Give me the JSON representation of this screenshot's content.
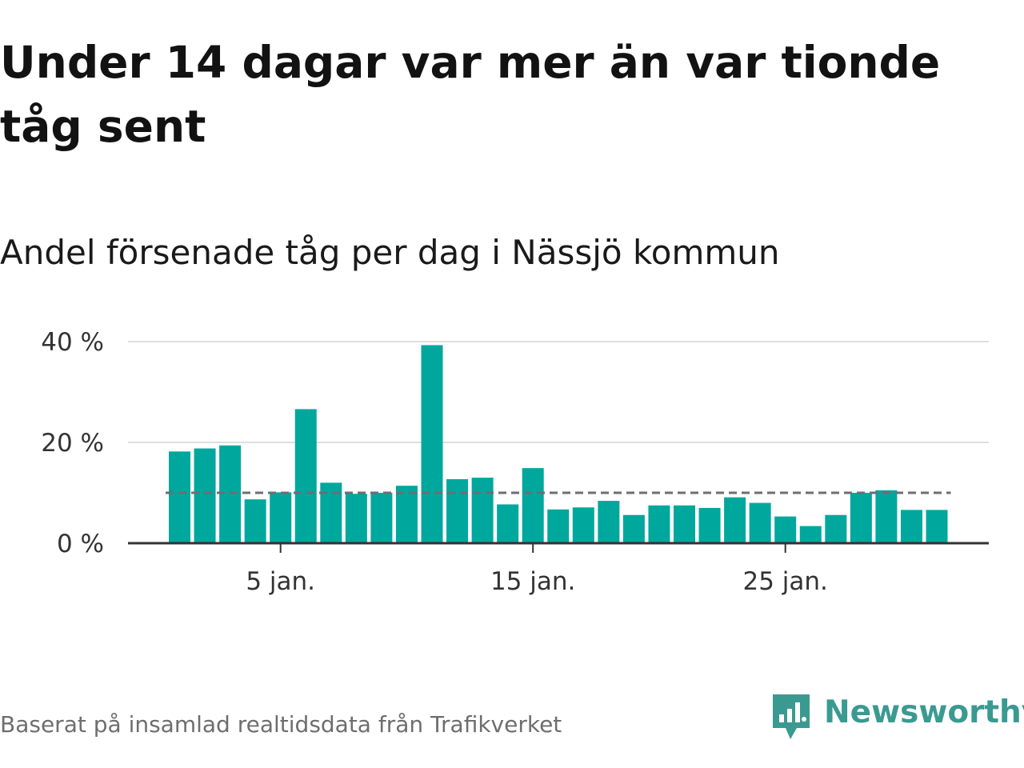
{
  "title": "Under 14 dagar var mer än var tionde tåg sent",
  "subtitle": "Andel försenade tåg per dag i Nässjö kommun",
  "source": "Baserat på insamlad realtidsdata från Trafikverket",
  "brand": {
    "name": "Newsworthy",
    "icon": "newsworthy-logo-icon",
    "color": "#3a9a91"
  },
  "colors": {
    "bar": "#00a79d",
    "reference_line": "#6e6e74",
    "grid": "#dddddd",
    "axis": "#333333"
  },
  "chart_data": {
    "type": "bar",
    "title": "Andel försenade tåg per dag i Nässjö kommun",
    "xlabel": "",
    "ylabel": "",
    "x": [
      1,
      2,
      3,
      4,
      5,
      6,
      7,
      8,
      9,
      10,
      11,
      12,
      13,
      14,
      15,
      16,
      17,
      18,
      19,
      20,
      21,
      22,
      23,
      24,
      25,
      26,
      27,
      28,
      29,
      30,
      31
    ],
    "values": [
      18.2,
      18.8,
      19.4,
      8.7,
      10.1,
      26.6,
      12.0,
      9.8,
      10.0,
      11.4,
      39.3,
      12.7,
      13.0,
      7.7,
      14.9,
      6.7,
      7.1,
      8.4,
      5.6,
      7.5,
      7.5,
      7.0,
      9.1,
      8.0,
      5.3,
      3.4,
      5.6,
      10.0,
      10.5,
      6.6,
      6.6
    ],
    "ylim": [
      0,
      40
    ],
    "yticks": [
      0,
      20,
      40
    ],
    "ytick_labels": [
      "0 %",
      "20 %",
      "40 %"
    ],
    "xticks": [
      5,
      15,
      25
    ],
    "xtick_labels": [
      "5 jan.",
      "15 jan.",
      "25 jan."
    ],
    "reference_line": 10,
    "grid": true
  }
}
